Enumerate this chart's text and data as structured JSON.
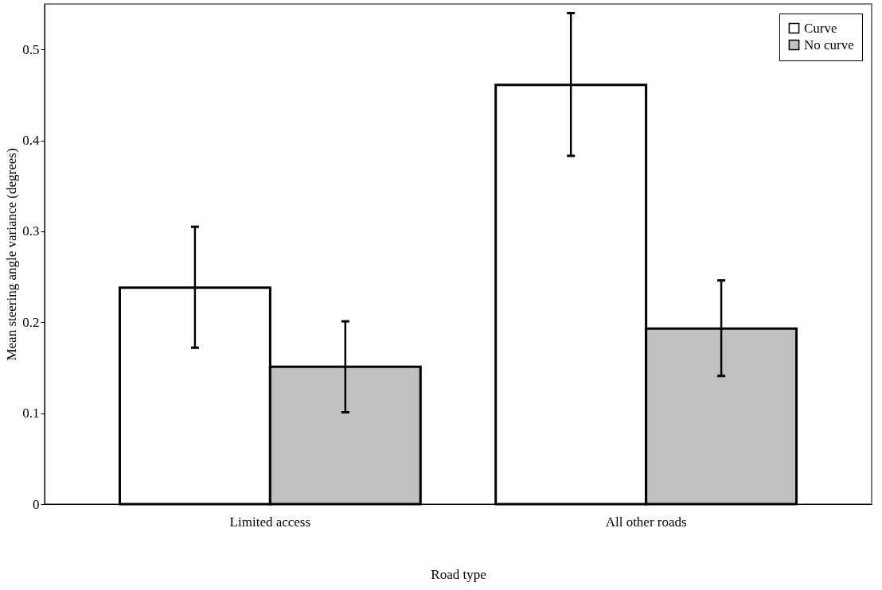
{
  "chart_data": {
    "type": "bar",
    "xlabel": "Road type",
    "ylabel": "Mean steering angle variance (degrees)",
    "categories": [
      "Limited access",
      "All other roads"
    ],
    "series": [
      {
        "name": "Curve",
        "color": "#ffffff",
        "values": [
          0.238,
          0.461
        ],
        "errors": [
          [
            0.172,
            0.305
          ],
          [
            0.383,
            0.54
          ]
        ]
      },
      {
        "name": "No curve",
        "color": "#c0c0c0",
        "values": [
          0.151,
          0.193
        ],
        "errors": [
          [
            0.101,
            0.201
          ],
          [
            0.141,
            0.246
          ]
        ]
      }
    ],
    "ylim": [
      0,
      0.55
    ],
    "yticks": [
      0,
      0.1,
      0.2,
      0.3,
      0.4,
      0.5
    ],
    "grid": false,
    "legend": "top right"
  }
}
